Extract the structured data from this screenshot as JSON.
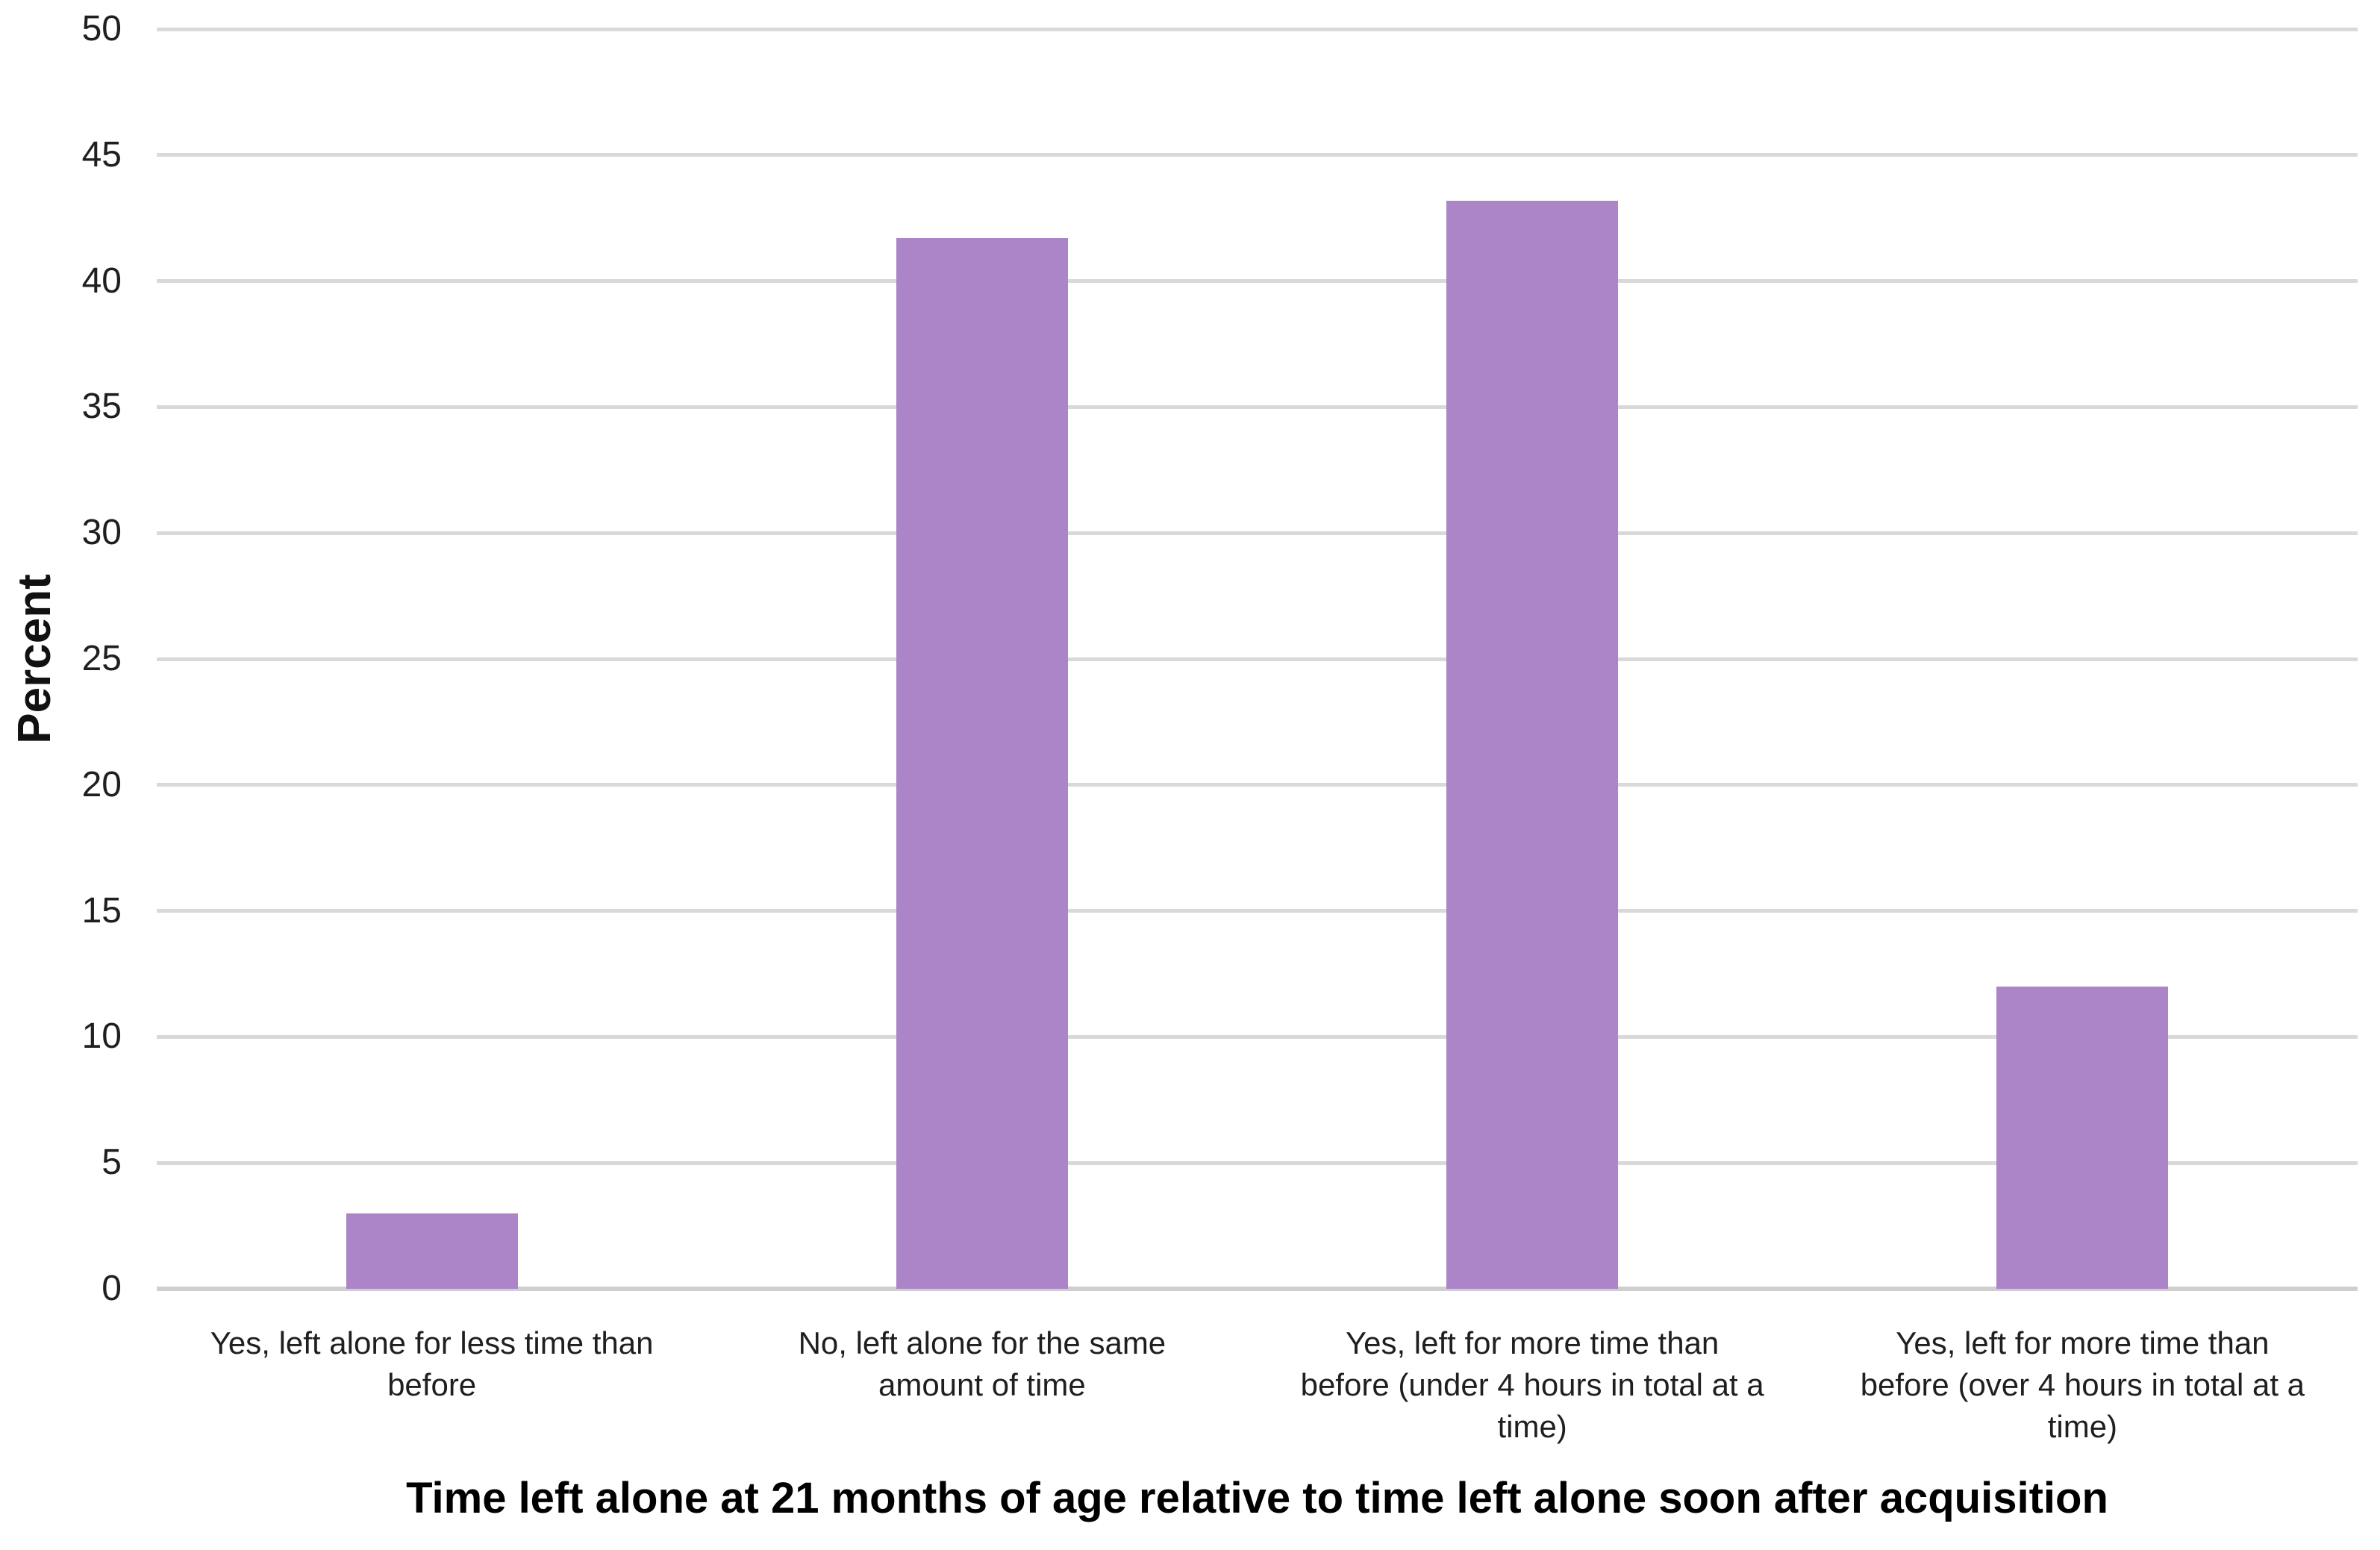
{
  "chart_data": {
    "type": "bar",
    "title": "",
    "xlabel": "Time left alone at 21 months of age relative to time left alone soon after acquisition",
    "ylabel": "Percent",
    "categories": [
      "Yes, left alone for less time than before",
      "No, left alone for the same amount of time",
      "Yes, left for more time than before (under 4 hours in total at a time)",
      "Yes, left for more time than before (over 4 hours in total at a time)"
    ],
    "x_tick_lines": [
      [
        "Yes, left alone for less time than",
        "before"
      ],
      [
        "No, left alone for the same",
        "amount of time"
      ],
      [
        "Yes, left for more time than",
        "before (under 4 hours in total at a",
        "time)"
      ],
      [
        "Yes, left for more time than",
        "before (over 4 hours in total at a",
        "time)"
      ]
    ],
    "values": [
      3,
      41.7,
      43.2,
      12
    ],
    "ylim": [
      0,
      50
    ],
    "ytick_step": 5,
    "yticks": [
      0,
      5,
      10,
      15,
      20,
      25,
      30,
      35,
      40,
      45,
      50
    ],
    "grid": true,
    "legend": "none",
    "bar_color": "#ab85c7",
    "gridline_color": "#d9d9d9",
    "text_color": "#1f1f1f"
  }
}
